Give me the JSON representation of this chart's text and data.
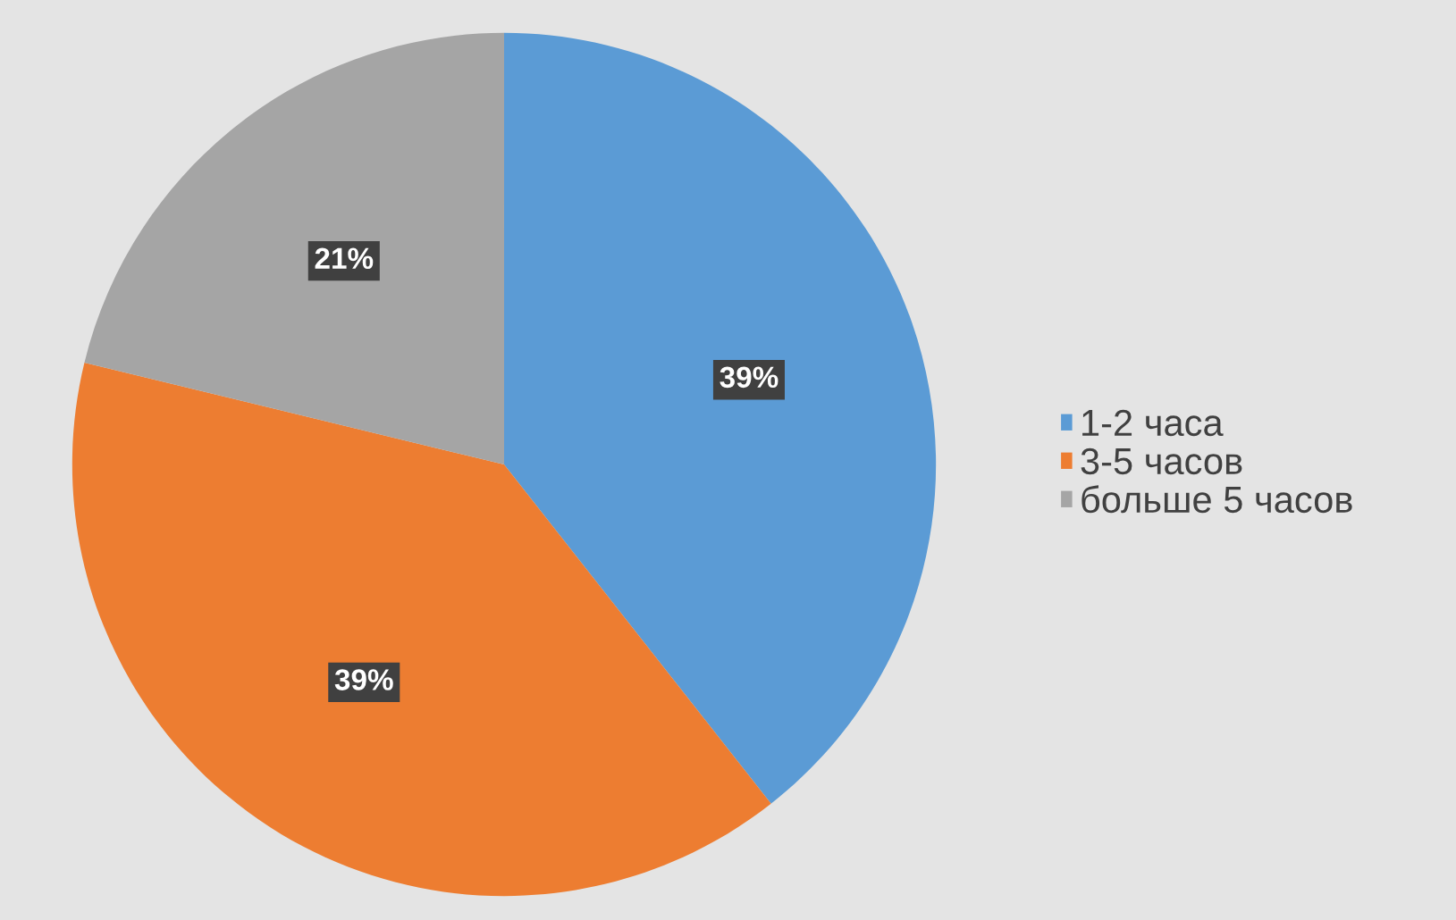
{
  "chart_data": {
    "type": "pie",
    "categories": [
      "1-2 часа",
      "3-5 часов",
      "больше 5 часов"
    ],
    "values": [
      39,
      39,
      21
    ],
    "colors": [
      "#5b9bd5",
      "#ed7d31",
      "#a5a5a5"
    ],
    "value_labels": [
      "39%",
      "39%",
      "21%"
    ],
    "legend": "right"
  }
}
